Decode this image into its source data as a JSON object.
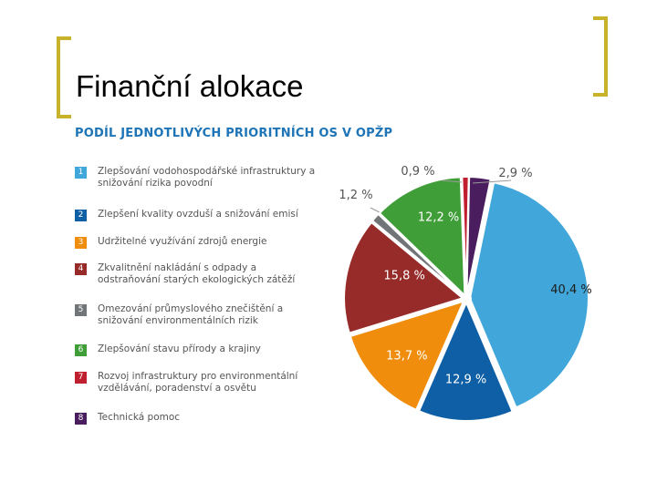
{
  "slide": {
    "title": "Finanční alokace"
  },
  "chart_data": {
    "type": "pie",
    "title": "PODÍL JEDNOTLIVÝCH PRIORITNÍCH OS V OPŽP",
    "legend_placement": "left",
    "slices": [
      {
        "num": "1",
        "label": "Zlepšování vodohospodářské infrastruktury a snižování rizika povodní",
        "value": 40.4,
        "value_label": "40,4 %",
        "color": "#41a6d9"
      },
      {
        "num": "2",
        "label": "Zlepšení kvality ovzduší a snižování emisí",
        "value": 12.9,
        "value_label": "12,9 %",
        "color": "#0e5fa6"
      },
      {
        "num": "3",
        "label": "Udržitelné využívání zdrojů energie",
        "value": 13.7,
        "value_label": "13,7 %",
        "color": "#f08d0c"
      },
      {
        "num": "4",
        "label": "Zkvalitnění nakládání s odpady a odstraňování starých ekologických zátěží",
        "value": 15.8,
        "value_label": "15,8 %",
        "color": "#962b2a"
      },
      {
        "num": "5",
        "label": "Omezování průmyslového znečištění a snižování environmentálních rizik",
        "value": 1.2,
        "value_label": "1,2 %",
        "color": "#727577"
      },
      {
        "num": "6",
        "label": "Zlepšování stavu přírody a krajiny",
        "value": 12.2,
        "value_label": "12,2 %",
        "color": "#3f9e38"
      },
      {
        "num": "7",
        "label": "Rozvoj infrastruktury pro environmentální vzdělávání, poradenství a osvětu",
        "value": 0.9,
        "value_label": "0,9 %",
        "color": "#c01f2f"
      },
      {
        "num": "8",
        "label": "Technická pomoc",
        "value": 2.9,
        "value_label": "2,9 %",
        "color": "#4a1d5e"
      }
    ]
  }
}
